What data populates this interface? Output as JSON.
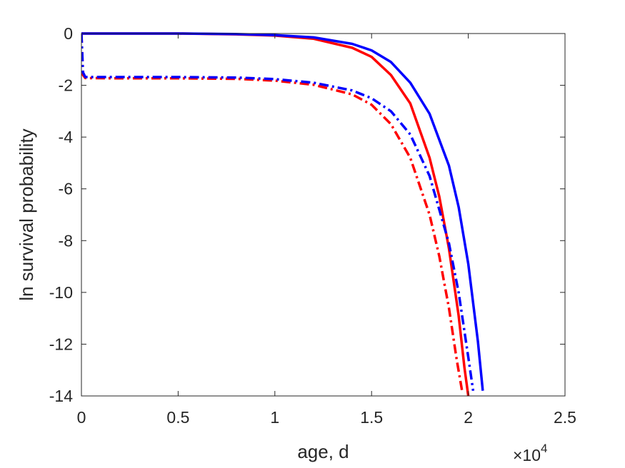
{
  "chart_data": {
    "type": "line",
    "xlabel": "age, d",
    "ylabel": "ln survival probability",
    "x_exponent_label": "×10",
    "x_exponent_power": "4",
    "xlim": [
      0,
      25000
    ],
    "ylim": [
      -14,
      0
    ],
    "x_ticks": [
      0,
      5000,
      10000,
      15000,
      20000,
      25000
    ],
    "x_tick_labels": [
      "0",
      "0.5",
      "1",
      "1.5",
      "2",
      "2.5"
    ],
    "y_ticks": [
      0,
      -2,
      -4,
      -6,
      -8,
      -10,
      -12,
      -14
    ],
    "y_tick_labels": [
      "0",
      "-2",
      "-4",
      "-6",
      "-8",
      "-10",
      "-12",
      "-14"
    ],
    "grid": false,
    "series": [
      {
        "color": "#ff0000",
        "dash": "solid",
        "x": [
          0,
          2000,
          5000,
          8000,
          10000,
          12000,
          14000,
          15000,
          16000,
          17000,
          18000,
          18500,
          19000,
          19500,
          19800,
          20000
        ],
        "y": [
          0,
          0,
          0,
          -0.03,
          -0.08,
          -0.2,
          -0.55,
          -0.9,
          -1.6,
          -2.7,
          -4.8,
          -6.3,
          -8.3,
          -10.9,
          -12.9,
          -14
        ]
      },
      {
        "color": "#0000ff",
        "dash": "solid",
        "x": [
          0,
          2000,
          5000,
          8000,
          10000,
          12000,
          14000,
          15000,
          16000,
          17000,
          18000,
          19000,
          19500,
          20000,
          20500,
          20750
        ],
        "y": [
          0,
          0,
          0,
          -0.02,
          -0.06,
          -0.15,
          -0.4,
          -0.65,
          -1.1,
          -1.9,
          -3.1,
          -5.1,
          -6.7,
          -8.9,
          -11.9,
          -13.8
        ]
      },
      {
        "color": "#ff0000",
        "dash": "dashdot",
        "x": [
          0,
          80,
          200,
          2000,
          5000,
          8000,
          10000,
          12000,
          14000,
          15000,
          16000,
          17000,
          18000,
          18500,
          19000,
          19400,
          19700
        ],
        "y": [
          0,
          -1.6,
          -1.72,
          -1.73,
          -1.73,
          -1.75,
          -1.82,
          -1.98,
          -2.35,
          -2.75,
          -3.5,
          -4.8,
          -7.0,
          -8.6,
          -10.6,
          -12.6,
          -13.9
        ]
      },
      {
        "color": "#0000ff",
        "dash": "dashdot",
        "x": [
          0,
          80,
          200,
          2000,
          5000,
          8000,
          10000,
          12000,
          14000,
          15000,
          16000,
          17000,
          18000,
          19000,
          19500,
          20000,
          20250
        ],
        "y": [
          0,
          -1.5,
          -1.68,
          -1.68,
          -1.68,
          -1.7,
          -1.76,
          -1.9,
          -2.2,
          -2.5,
          -3.0,
          -3.9,
          -5.5,
          -8.1,
          -10.0,
          -12.5,
          -13.8
        ]
      }
    ]
  }
}
